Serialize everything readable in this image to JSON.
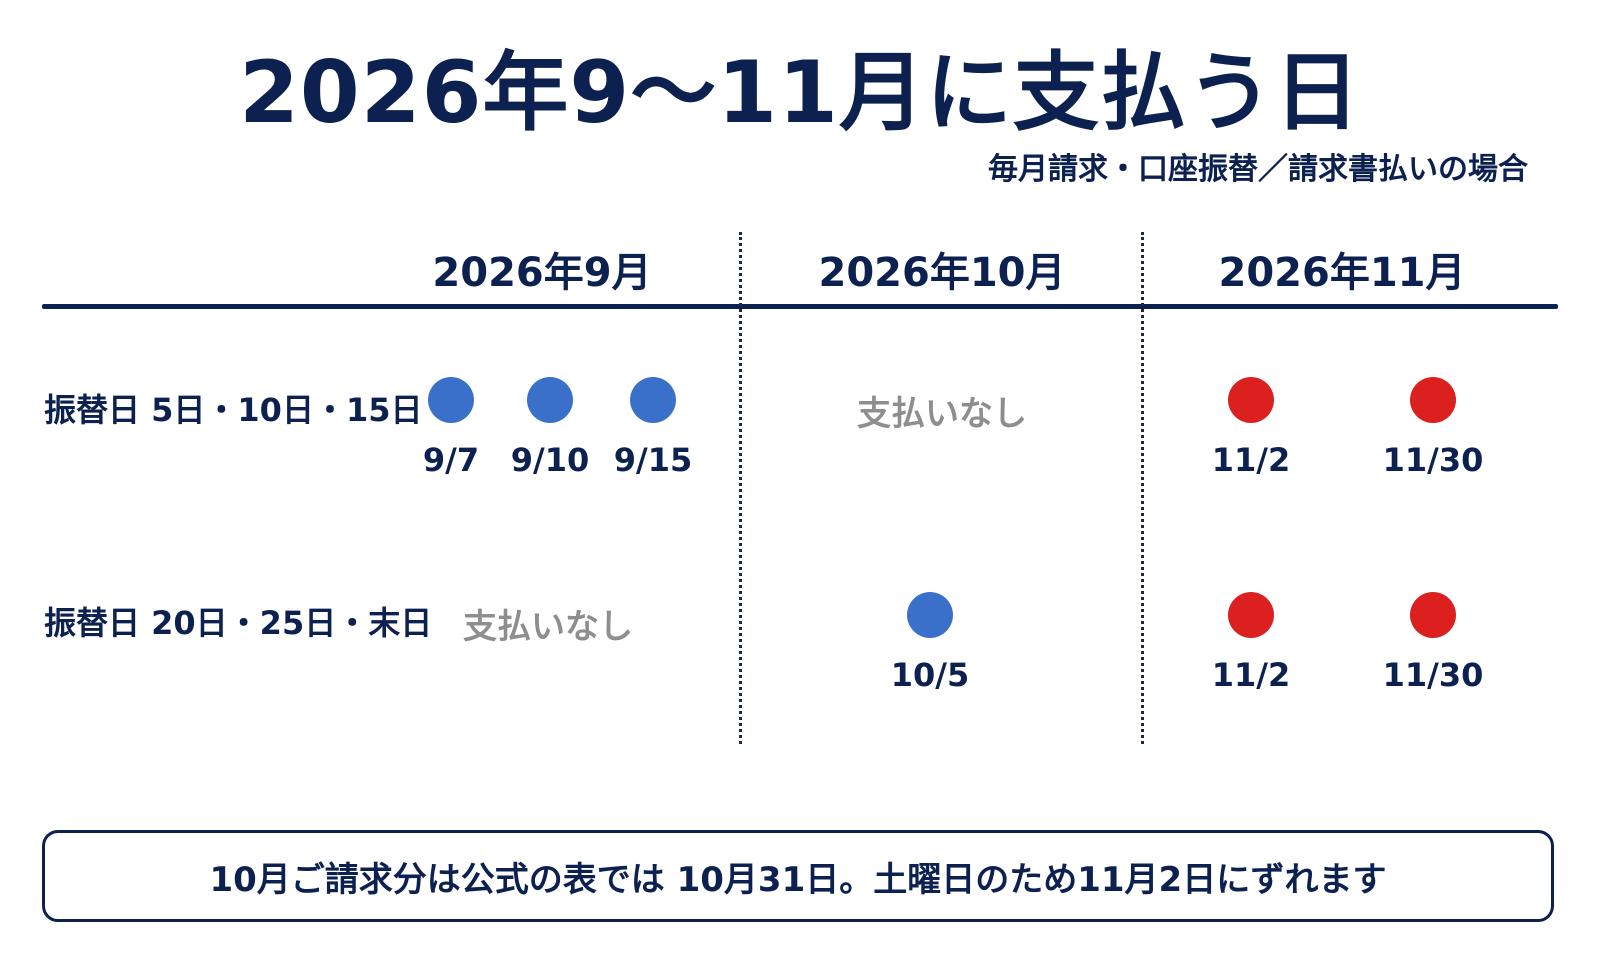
{
  "title": "2026年9〜11月に支払う日",
  "subtitle": "毎月請求・口座振替／請求書払いの場合",
  "months": [
    "2026年9月",
    "2026年10月",
    "2026年11月"
  ],
  "rows": [
    {
      "label": "振替日 5日・10日・15日",
      "cells": [
        {
          "payments": [
            {
              "date": "9/7",
              "color": "blue"
            },
            {
              "date": "9/10",
              "color": "blue"
            },
            {
              "date": "9/15",
              "color": "blue"
            }
          ]
        },
        {
          "no_payment": "支払いなし"
        },
        {
          "payments": [
            {
              "date": "11/2",
              "color": "red"
            },
            {
              "date": "11/30",
              "color": "red"
            }
          ]
        }
      ]
    },
    {
      "label": "振替日 20日・25日・末日",
      "cells": [
        {
          "no_payment": "支払いなし"
        },
        {
          "payments": [
            {
              "date": "10/5",
              "color": "blue"
            }
          ]
        },
        {
          "payments": [
            {
              "date": "11/2",
              "color": "red"
            },
            {
              "date": "11/30",
              "color": "red"
            }
          ]
        }
      ]
    }
  ],
  "note": "10月ご請求分は公式の表では 10月31日。土曜日のため11月2日にずれます",
  "colors": {
    "blue": "#3a70c9",
    "red": "#dc1f1f",
    "navy": "#0d2150",
    "muted": "#8e8e8e"
  }
}
